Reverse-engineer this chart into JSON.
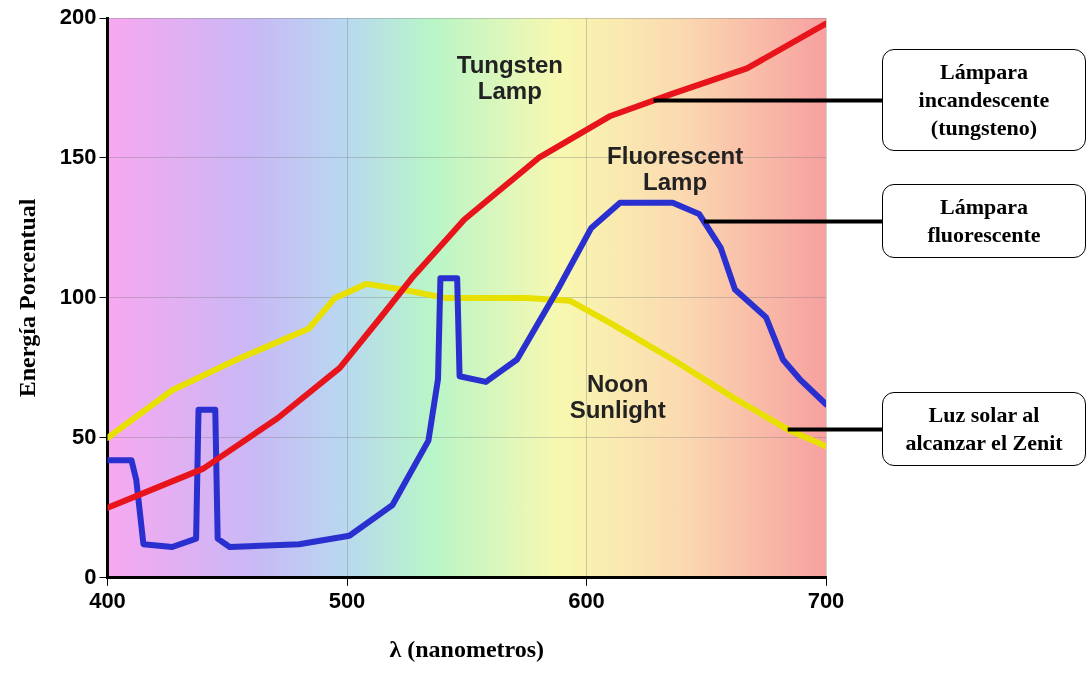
{
  "chart_data": {
    "type": "line",
    "xlabel": "λ (nanometros)",
    "ylabel": "Energía Porcentual",
    "xlim": [
      400,
      700
    ],
    "xticks": [
      400,
      500,
      600,
      700
    ],
    "ylim": [
      0,
      200
    ],
    "yticks": [
      0,
      50,
      100,
      150,
      200
    ],
    "grid": true,
    "legend": false,
    "marker": "none",
    "line_style": "solid",
    "series": [
      {
        "name": "Tungsten Lamp",
        "color": "#e8141b",
        "x": [
          400,
          440,
          471,
          497,
          514,
          527,
          549,
          580,
          610,
          636,
          667,
          700
        ],
        "values": [
          25,
          39,
          57,
          75,
          93,
          107,
          128,
          150,
          165,
          173,
          182,
          198
        ]
      },
      {
        "name": "Fluorescent Lamp",
        "color": "#2a2fd0",
        "x": [
          400,
          410,
          412,
          415,
          427,
          437,
          438,
          445,
          446,
          451,
          480,
          501,
          519,
          534,
          538,
          539,
          546,
          547,
          558,
          571,
          588,
          602,
          614,
          636,
          647,
          656,
          662,
          675,
          682,
          689,
          700
        ],
        "values": [
          42,
          42,
          35,
          12,
          11,
          14,
          60,
          60,
          14,
          11,
          12,
          15,
          26,
          49,
          71,
          107,
          107,
          72,
          70,
          78,
          103,
          125,
          134,
          134,
          130,
          118,
          103,
          93,
          78,
          71,
          62
        ]
      },
      {
        "name": "Noon Sunlight",
        "color": "#e8e000",
        "x": [
          400,
          427,
          454,
          484,
          495,
          508,
          523,
          541,
          575,
          593,
          610,
          636,
          662,
          684,
          700
        ],
        "values": [
          50,
          67,
          78,
          89,
          100,
          105,
          103,
          100,
          100,
          99,
          91,
          78,
          64,
          53,
          47
        ]
      }
    ],
    "annotations": [
      "Lámpara incandescente (tungsteno)",
      "Lámpara fluorescente",
      {
        "text": "Luz solar al alcanzar el Zenit",
        "x": 684,
        "y": 53
      }
    ]
  }
}
